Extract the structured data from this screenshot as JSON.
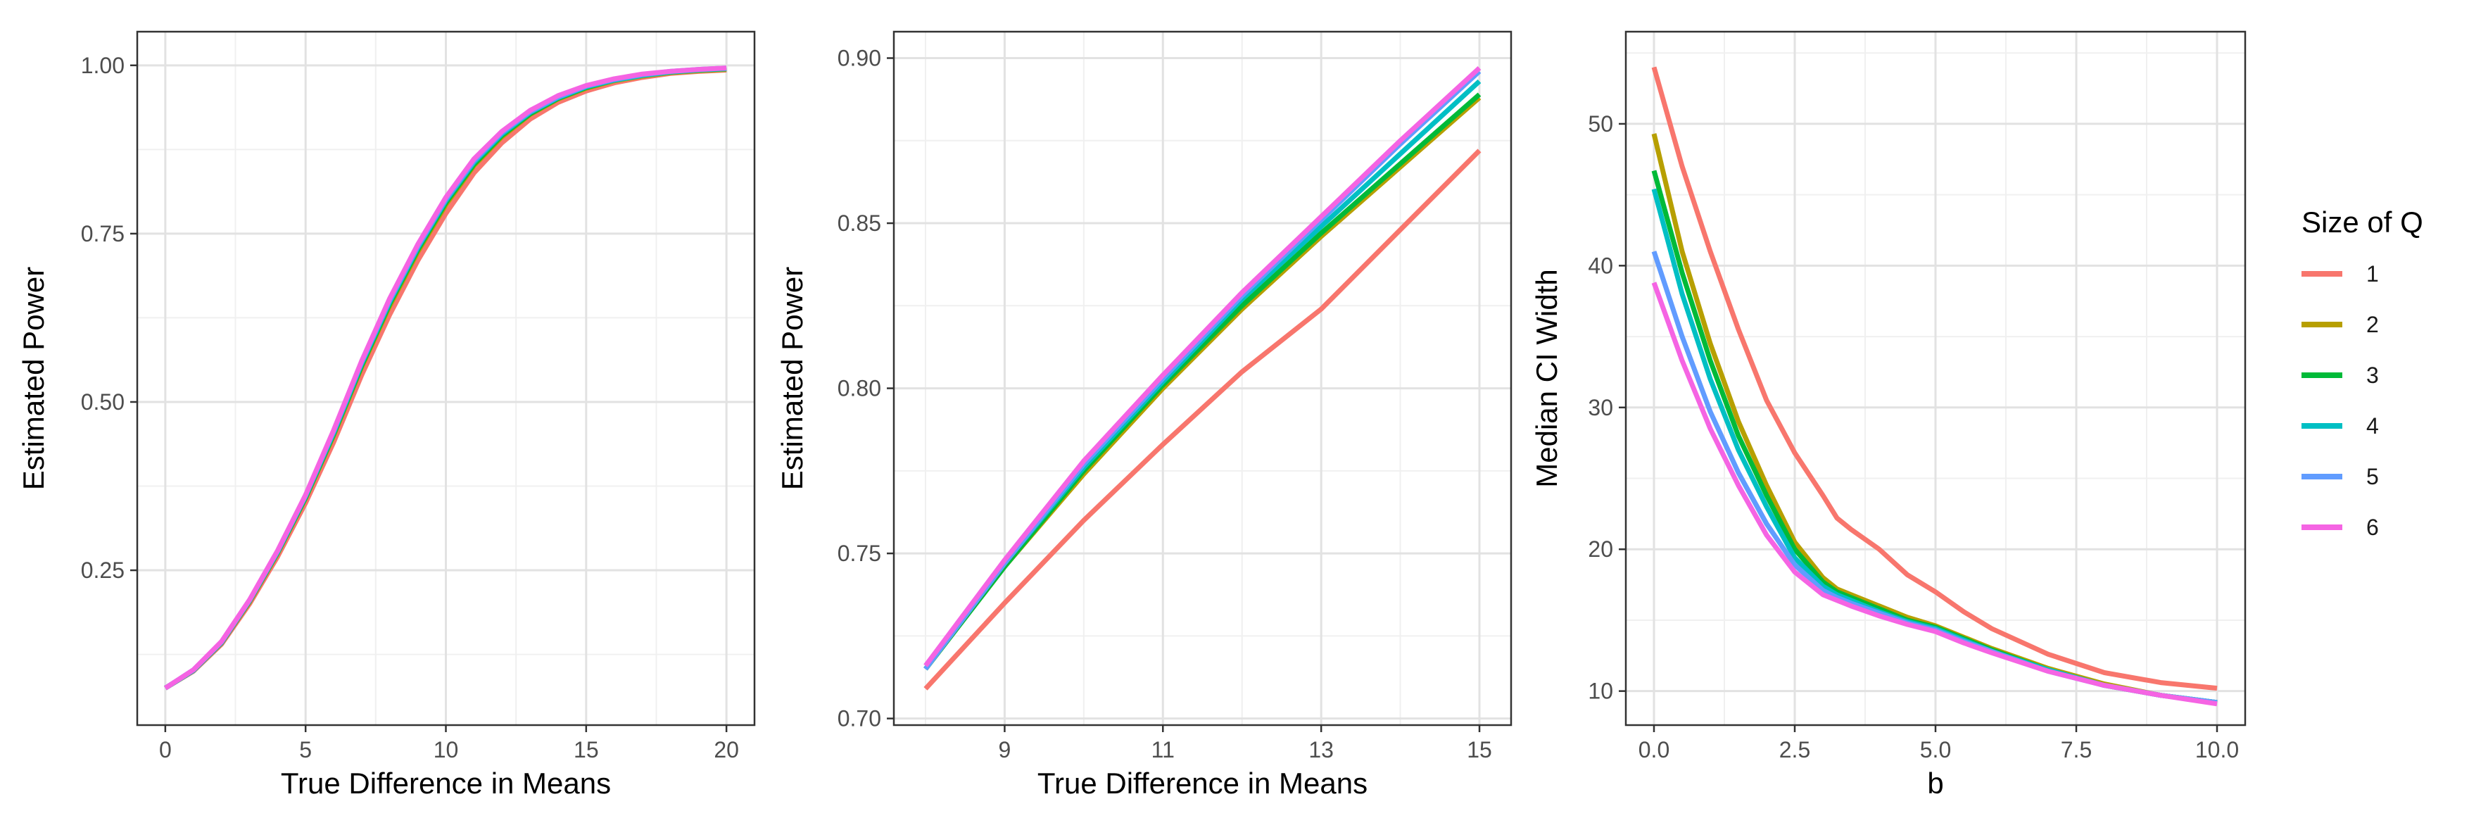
{
  "legend": {
    "title": "Size of Q",
    "position": "right",
    "entries": [
      {
        "label": "1",
        "color": "#F8766D"
      },
      {
        "label": "2",
        "color": "#B79F00"
      },
      {
        "label": "3",
        "color": "#00BA38"
      },
      {
        "label": "4",
        "color": "#00BFC4"
      },
      {
        "label": "5",
        "color": "#619CFF"
      },
      {
        "label": "6",
        "color": "#F564E3"
      }
    ]
  },
  "chart_data": [
    {
      "type": "line",
      "xlabel": "True Difference in Means",
      "ylabel": "Estimated Power",
      "xlim": [
        -1,
        21
      ],
      "ylim": [
        0.02,
        1.05
      ],
      "xticks": [
        {
          "v": 0,
          "label": "0"
        },
        {
          "v": 5,
          "label": "5"
        },
        {
          "v": 10,
          "label": "10"
        },
        {
          "v": 15,
          "label": "15"
        },
        {
          "v": 20,
          "label": "20"
        }
      ],
      "yticks": [
        {
          "v": 0.25,
          "label": "0.25"
        },
        {
          "v": 0.5,
          "label": "0.50"
        },
        {
          "v": 0.75,
          "label": "0.75"
        },
        {
          "v": 1.0,
          "label": "1.00"
        }
      ],
      "grid": true,
      "x": [
        0,
        1,
        2,
        3,
        4,
        5,
        6,
        7,
        8,
        9,
        10,
        11,
        12,
        13,
        14,
        15,
        16,
        17,
        18,
        19,
        20
      ],
      "series": [
        {
          "name": "1",
          "values": [
            0.075,
            0.1,
            0.14,
            0.2,
            0.27,
            0.35,
            0.44,
            0.54,
            0.63,
            0.71,
            0.78,
            0.84,
            0.885,
            0.92,
            0.945,
            0.962,
            0.974,
            0.982,
            0.988,
            0.991,
            0.993
          ]
        },
        {
          "name": "2",
          "values": [
            0.075,
            0.101,
            0.142,
            0.203,
            0.275,
            0.357,
            0.45,
            0.552,
            0.643,
            0.723,
            0.793,
            0.851,
            0.894,
            0.927,
            0.95,
            0.966,
            0.977,
            0.984,
            0.989,
            0.992,
            0.994
          ]
        },
        {
          "name": "3",
          "values": [
            0.075,
            0.101,
            0.142,
            0.204,
            0.276,
            0.358,
            0.452,
            0.554,
            0.646,
            0.726,
            0.796,
            0.853,
            0.896,
            0.928,
            0.951,
            0.967,
            0.978,
            0.985,
            0.99,
            0.993,
            0.995
          ]
        },
        {
          "name": "4",
          "values": [
            0.075,
            0.101,
            0.143,
            0.205,
            0.277,
            0.36,
            0.454,
            0.557,
            0.649,
            0.729,
            0.799,
            0.856,
            0.898,
            0.93,
            0.952,
            0.968,
            0.978,
            0.985,
            0.99,
            0.993,
            0.995
          ]
        },
        {
          "name": "5",
          "values": [
            0.075,
            0.102,
            0.143,
            0.205,
            0.278,
            0.361,
            0.456,
            0.559,
            0.651,
            0.731,
            0.801,
            0.858,
            0.9,
            0.931,
            0.953,
            0.969,
            0.979,
            0.986,
            0.991,
            0.994,
            0.996
          ]
        },
        {
          "name": "6",
          "values": [
            0.075,
            0.102,
            0.144,
            0.206,
            0.279,
            0.362,
            0.458,
            0.561,
            0.654,
            0.734,
            0.804,
            0.861,
            0.902,
            0.933,
            0.955,
            0.97,
            0.98,
            0.987,
            0.991,
            0.994,
            0.996
          ]
        }
      ]
    },
    {
      "type": "line",
      "xlabel": "True Difference in Means",
      "ylabel": "Estimated Power",
      "xlim": [
        7.6,
        15.4
      ],
      "ylim": [
        0.698,
        0.908
      ],
      "xticks": [
        {
          "v": 9,
          "label": "9"
        },
        {
          "v": 11,
          "label": "11"
        },
        {
          "v": 13,
          "label": "13"
        },
        {
          "v": 15,
          "label": "15"
        }
      ],
      "yticks": [
        {
          "v": 0.7,
          "label": "0.70"
        },
        {
          "v": 0.75,
          "label": "0.75"
        },
        {
          "v": 0.8,
          "label": "0.80"
        },
        {
          "v": 0.85,
          "label": "0.85"
        },
        {
          "v": 0.9,
          "label": "0.90"
        }
      ],
      "grid": true,
      "x": [
        8,
        9,
        10,
        11,
        12,
        13,
        14,
        15
      ],
      "series": [
        {
          "name": "1",
          "values": [
            0.709,
            0.735,
            0.76,
            0.783,
            0.805,
            0.824,
            0.848,
            0.872
          ]
        },
        {
          "name": "2",
          "values": [
            0.715,
            0.746,
            0.774,
            0.8,
            0.824,
            0.846,
            0.867,
            0.888
          ]
        },
        {
          "name": "3",
          "values": [
            0.715,
            0.746,
            0.775,
            0.801,
            0.825,
            0.847,
            0.868,
            0.889
          ]
        },
        {
          "name": "4",
          "values": [
            0.715,
            0.747,
            0.776,
            0.802,
            0.827,
            0.849,
            0.871,
            0.893
          ]
        },
        {
          "name": "5",
          "values": [
            0.715,
            0.747,
            0.777,
            0.803,
            0.828,
            0.851,
            0.874,
            0.896
          ]
        },
        {
          "name": "6",
          "values": [
            0.716,
            0.748,
            0.778,
            0.804,
            0.829,
            0.852,
            0.875,
            0.897
          ]
        }
      ]
    },
    {
      "type": "line",
      "xlabel": "b",
      "ylabel": "Median CI Width",
      "xlim": [
        -0.5,
        10.5
      ],
      "ylim": [
        7.6,
        56.5
      ],
      "xticks": [
        {
          "v": 0,
          "label": "0.0"
        },
        {
          "v": 2.5,
          "label": "2.5"
        },
        {
          "v": 5,
          "label": "5.0"
        },
        {
          "v": 7.5,
          "label": "7.5"
        },
        {
          "v": 10,
          "label": "10.0"
        }
      ],
      "yticks": [
        {
          "v": 10,
          "label": "10"
        },
        {
          "v": 20,
          "label": "20"
        },
        {
          "v": 30,
          "label": "30"
        },
        {
          "v": 40,
          "label": "40"
        },
        {
          "v": 50,
          "label": "50"
        }
      ],
      "grid": true,
      "x": [
        0,
        0.5,
        1,
        1.5,
        2,
        2.5,
        3,
        3.25,
        3.5,
        4,
        4.5,
        5,
        5.5,
        6,
        7,
        8,
        9,
        10
      ],
      "series": [
        {
          "name": "1",
          "values": [
            54.0,
            47.0,
            41.0,
            35.5,
            30.5,
            26.8,
            23.8,
            22.2,
            21.4,
            20.0,
            18.2,
            17.0,
            15.6,
            14.4,
            12.6,
            11.3,
            10.6,
            10.2
          ]
        },
        {
          "name": "2",
          "values": [
            49.3,
            41.0,
            34.5,
            29.0,
            24.5,
            20.5,
            18.0,
            17.2,
            16.8,
            16.0,
            15.2,
            14.6,
            13.8,
            13.0,
            11.6,
            10.5,
            9.7,
            9.2
          ]
        },
        {
          "name": "3",
          "values": [
            46.7,
            39.5,
            33.3,
            28.0,
            23.8,
            20.0,
            17.7,
            17.0,
            16.6,
            15.8,
            15.0,
            14.5,
            13.7,
            12.9,
            11.5,
            10.4,
            9.7,
            9.2
          ]
        },
        {
          "name": "4",
          "values": [
            45.4,
            38.0,
            32.0,
            27.0,
            23.0,
            19.4,
            17.4,
            16.8,
            16.4,
            15.6,
            14.9,
            14.4,
            13.6,
            12.8,
            11.5,
            10.4,
            9.7,
            9.2
          ]
        },
        {
          "name": "5",
          "values": [
            41.0,
            35.0,
            29.7,
            25.4,
            21.8,
            18.9,
            17.1,
            16.6,
            16.2,
            15.5,
            14.8,
            14.3,
            13.5,
            12.8,
            11.4,
            10.4,
            9.7,
            9.2
          ]
        },
        {
          "name": "6",
          "values": [
            38.8,
            33.3,
            28.5,
            24.5,
            21.0,
            18.4,
            16.8,
            16.4,
            16.0,
            15.3,
            14.7,
            14.2,
            13.4,
            12.7,
            11.4,
            10.4,
            9.7,
            9.1
          ]
        }
      ]
    }
  ]
}
